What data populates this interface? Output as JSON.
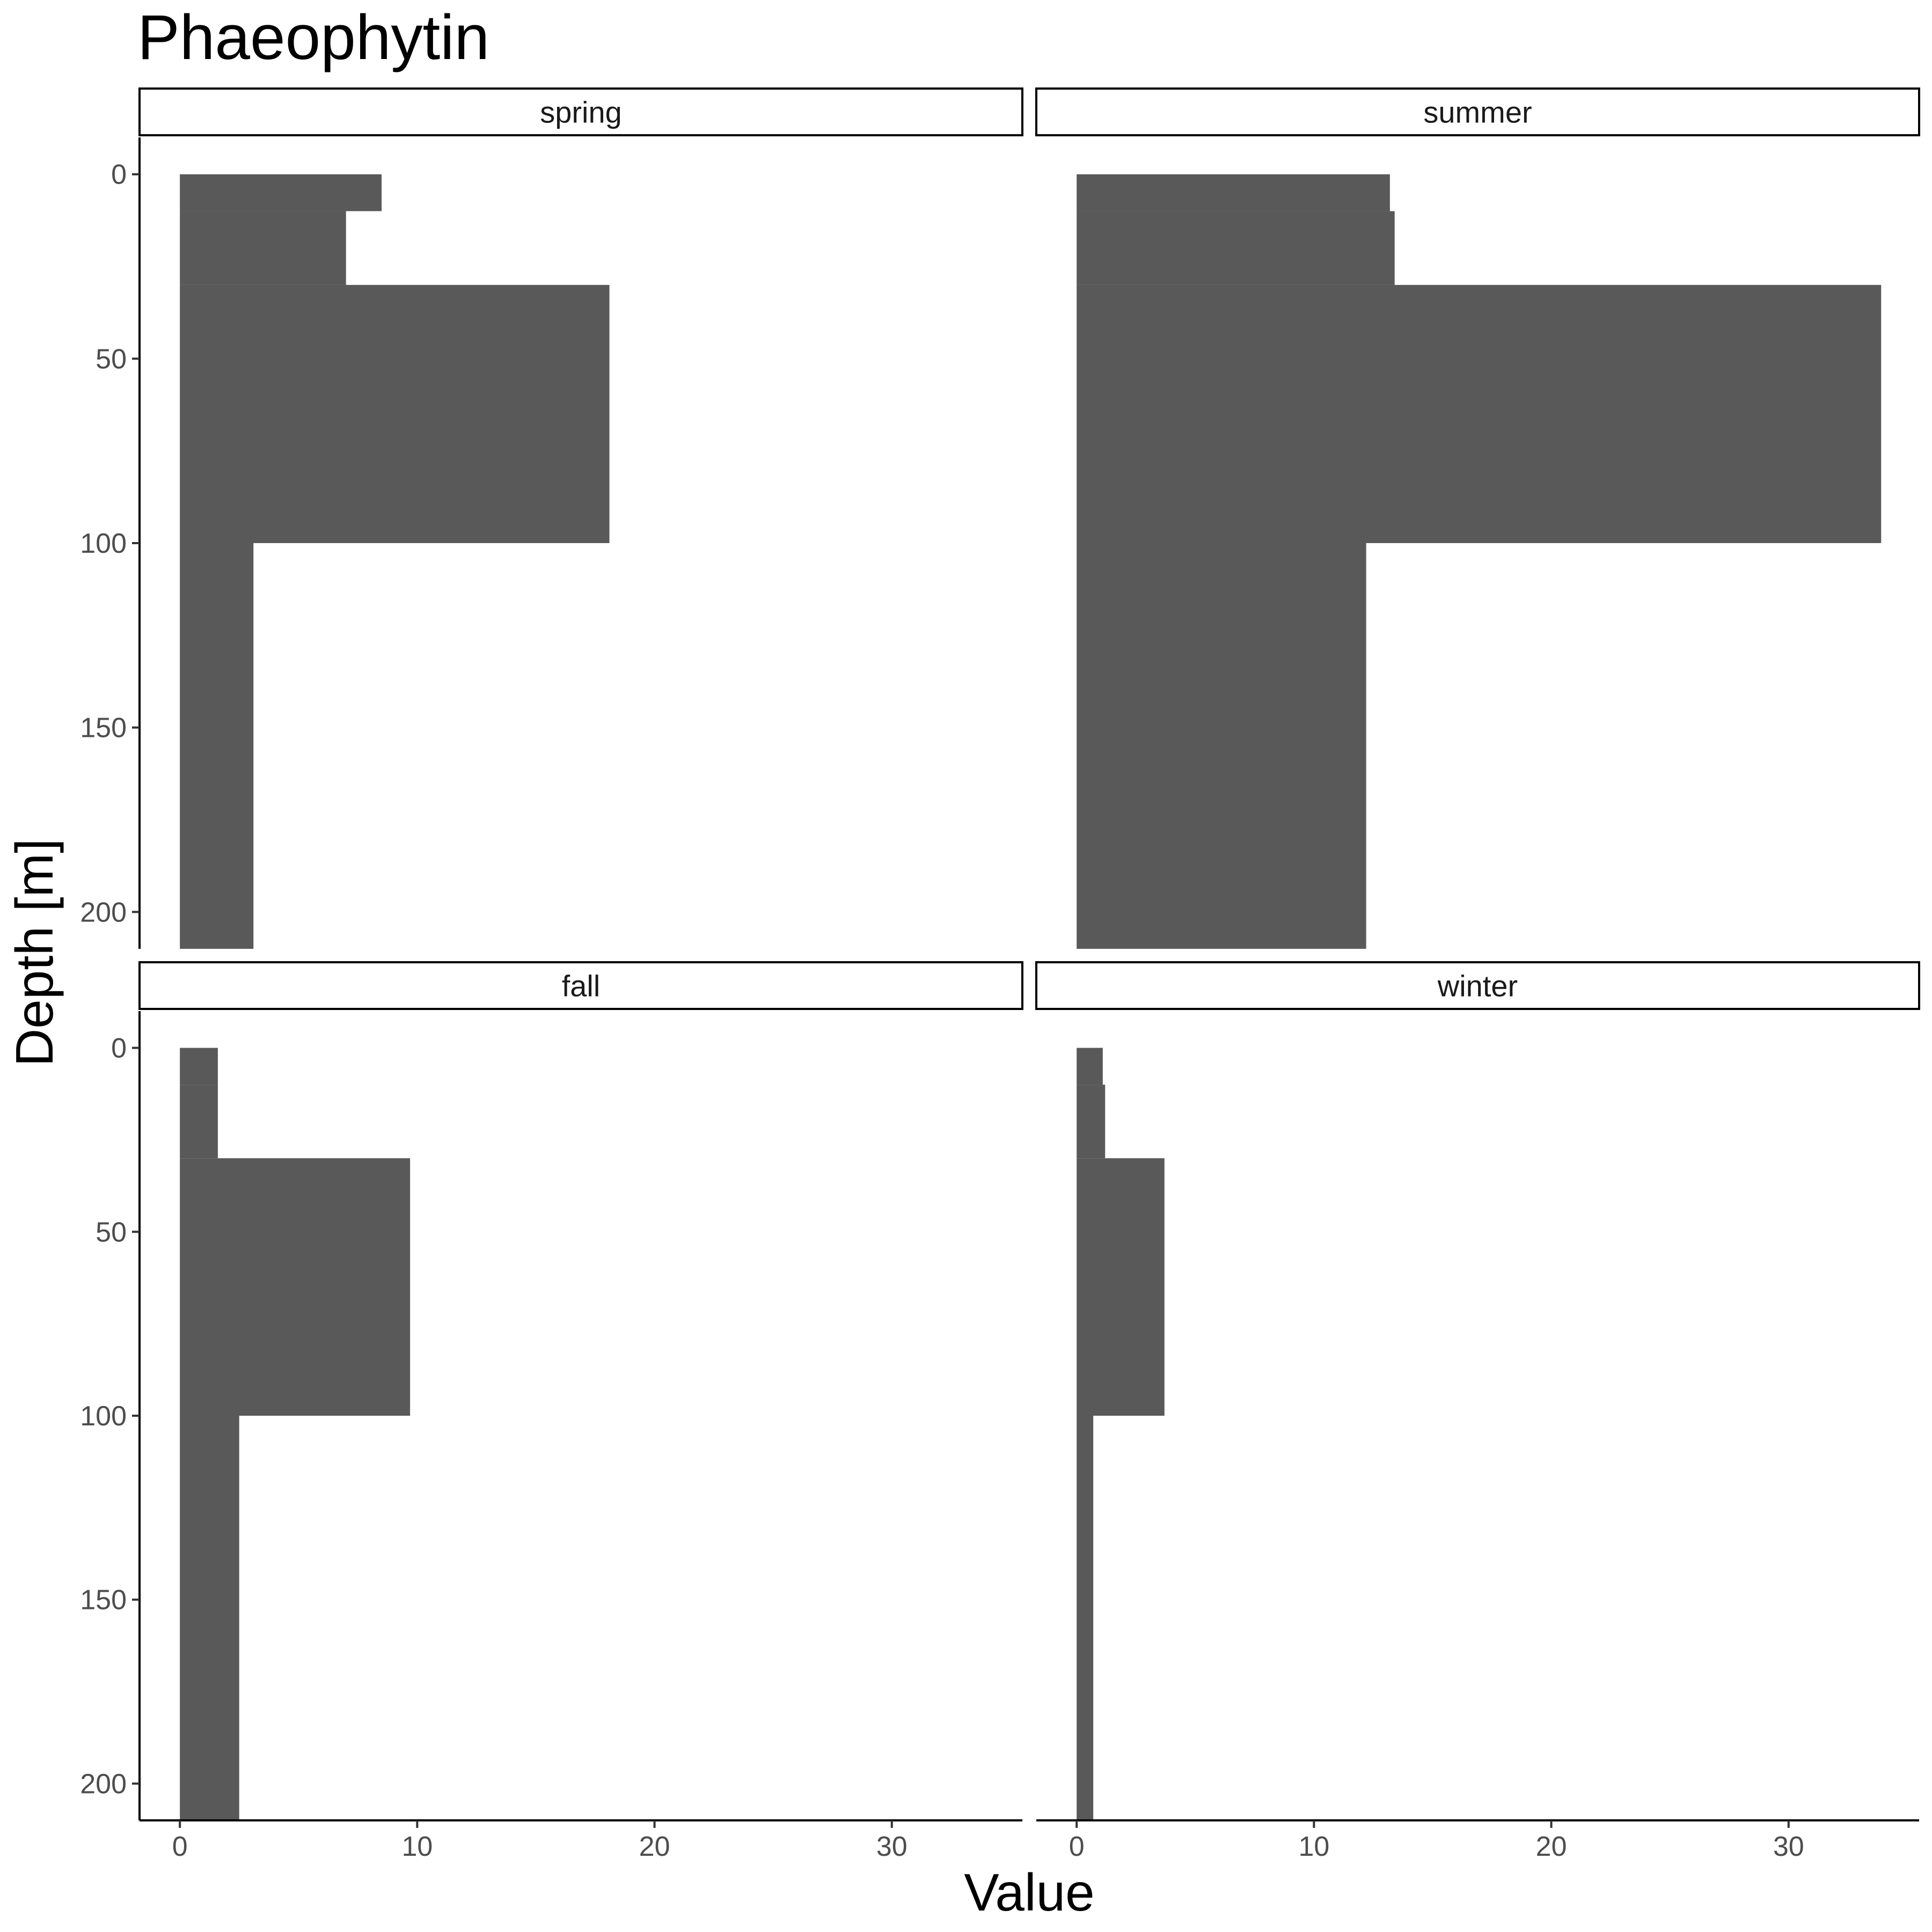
{
  "chart_data": {
    "type": "bar",
    "orientation": "horizontal",
    "title": "Phaeophytin",
    "xlabel": "Value",
    "ylabel": "Depth [m]",
    "xlim": [
      -1.7,
      35.5
    ],
    "ylim": [
      210,
      -10
    ],
    "y_reversed": true,
    "x_ticks": [
      0,
      10,
      20,
      30
    ],
    "y_ticks": [
      0,
      50,
      100,
      150,
      200
    ],
    "grid": false,
    "bar_color": "#595959",
    "layers": [
      {
        "depth_top": 0,
        "depth_bottom": 10
      },
      {
        "depth_top": 10,
        "depth_bottom": 30
      },
      {
        "depth_top": 30,
        "depth_bottom": 100
      },
      {
        "depth_top": 100,
        "depth_bottom": 210
      }
    ],
    "panels": [
      {
        "name": "spring",
        "values": [
          8.5,
          7.0,
          18.1,
          3.1
        ]
      },
      {
        "name": "summer",
        "values": [
          13.2,
          13.4,
          33.9,
          12.2
        ]
      },
      {
        "name": "fall",
        "values": [
          1.6,
          1.6,
          9.7,
          2.5
        ]
      },
      {
        "name": "winter",
        "values": [
          1.1,
          1.2,
          3.7,
          0.7
        ]
      }
    ]
  }
}
